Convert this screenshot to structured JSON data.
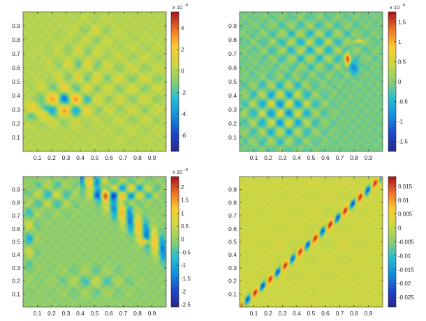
{
  "figure": {
    "layout": "2x2 grid of heatmaps with colorbars",
    "colormap": "parula"
  },
  "chart_data": [
    {
      "type": "heatmap",
      "title": "",
      "xlabel": "",
      "ylabel": "",
      "xlim": [
        0,
        1
      ],
      "ylim": [
        0,
        1
      ],
      "x_ticks": [
        "0.1",
        "0.2",
        "0.3",
        "0.4",
        "0.5",
        "0.6",
        "0.7",
        "0.8",
        "0.9"
      ],
      "y_ticks": [
        "0.1",
        "0.2",
        "0.3",
        "0.4",
        "0.5",
        "0.6",
        "0.7",
        "0.8",
        "0.9"
      ],
      "colorbar": {
        "min": -7.5,
        "max": 5.5,
        "exponent_label": "x 10",
        "exponent_value": "-8",
        "ticks": [
          {
            "label": "4",
            "value": 4
          },
          {
            "label": "2",
            "value": 2
          },
          {
            "label": "0",
            "value": 0
          },
          {
            "label": "-2",
            "value": -2
          },
          {
            "label": "-4",
            "value": -4
          },
          {
            "label": "-6",
            "value": -6
          }
        ]
      },
      "field": {
        "background": 0.02,
        "features": [
          {
            "kind": "ripple",
            "cx": 0.3,
            "cy": 0.35,
            "sx": 0.2,
            "sy": 0.12,
            "amp": 0.7,
            "fx": 38,
            "fy": 33
          },
          {
            "kind": "ripple",
            "cx": 0.1,
            "cy": 0.3,
            "sx": 0.1,
            "sy": 0.08,
            "amp": 0.5,
            "fx": 30,
            "fy": 40
          },
          {
            "kind": "ripple",
            "cx": 0.4,
            "cy": 0.6,
            "sx": 0.2,
            "sy": 0.2,
            "amp": 0.25,
            "fx": 45,
            "fy": 30
          },
          {
            "kind": "ripple",
            "cx": 0.8,
            "cy": 0.45,
            "sx": 0.3,
            "sy": 0.3,
            "amp": 0.18,
            "fx": 35,
            "fy": 42
          },
          {
            "kind": "ripple",
            "cx": 0.5,
            "cy": 0.85,
            "sx": 0.15,
            "sy": 0.1,
            "amp": 0.2,
            "fx": 40,
            "fy": 36
          }
        ]
      }
    },
    {
      "type": "heatmap",
      "title": "",
      "xlabel": "",
      "ylabel": "",
      "xlim": [
        0,
        1
      ],
      "ylim": [
        0,
        1
      ],
      "x_ticks": [
        "0.1",
        "0.2",
        "0.3",
        "0.4",
        "0.5",
        "0.6",
        "0.7",
        "0.8",
        "0.9"
      ],
      "y_ticks": [
        "0.1",
        "0.2",
        "0.3",
        "0.4",
        "0.5",
        "0.6",
        "0.7",
        "0.8",
        "0.9"
      ],
      "colorbar": {
        "min": -1.75,
        "max": 1.75,
        "exponent_label": "x 10",
        "exponent_value": "-8",
        "ticks": [
          {
            "label": "1.5",
            "value": 1.5
          },
          {
            "label": "1",
            "value": 1
          },
          {
            "label": "0.5",
            "value": 0.5
          },
          {
            "label": "0",
            "value": 0
          },
          {
            "label": "-0.5",
            "value": -0.5
          },
          {
            "label": "-1",
            "value": -1
          },
          {
            "label": "-1.5",
            "value": -1.5
          }
        ]
      },
      "field": {
        "background": -0.05,
        "features": [
          {
            "kind": "ripple",
            "cx": 0.3,
            "cy": 0.3,
            "sx": 0.25,
            "sy": 0.25,
            "amp": 0.45,
            "fx": 50,
            "fy": 46
          },
          {
            "kind": "ripple",
            "cx": 0.5,
            "cy": 0.75,
            "sx": 0.35,
            "sy": 0.2,
            "amp": 0.3,
            "fx": 48,
            "fy": 52
          },
          {
            "kind": "blob",
            "cx": 0.755,
            "cy": 0.66,
            "sx": 0.015,
            "sy": 0.05,
            "amp": 0.85
          },
          {
            "kind": "blob",
            "cx": 0.83,
            "cy": 0.79,
            "sx": 0.03,
            "sy": 0.012,
            "amp": 0.7
          },
          {
            "kind": "blob",
            "cx": 0.8,
            "cy": 0.6,
            "sx": 0.03,
            "sy": 0.04,
            "amp": -0.5
          }
        ]
      }
    },
    {
      "type": "heatmap",
      "title": "",
      "xlabel": "",
      "ylabel": "",
      "xlim": [
        0,
        1
      ],
      "ylim": [
        0,
        1
      ],
      "x_ticks": [
        "0.1",
        "0.2",
        "0.3",
        "0.4",
        "0.5",
        "0.6",
        "0.7",
        "0.8",
        "0.9"
      ],
      "y_ticks": [
        "0.1",
        "0.2",
        "0.3",
        "0.4",
        "0.5",
        "0.6",
        "0.7",
        "0.8",
        "0.9"
      ],
      "colorbar": {
        "min": -2.6,
        "max": 2.4,
        "exponent_label": "x 10",
        "exponent_value": "-8",
        "ticks": [
          {
            "label": "2",
            "value": 2
          },
          {
            "label": "1.5",
            "value": 1.5
          },
          {
            "label": "1",
            "value": 1
          },
          {
            "label": "0.5",
            "value": 0.5
          },
          {
            "label": "0",
            "value": 0
          },
          {
            "label": "-0.5",
            "value": -0.5
          },
          {
            "label": "-1",
            "value": -1
          },
          {
            "label": "-1.5",
            "value": -1.5
          },
          {
            "label": "-2",
            "value": -2
          },
          {
            "label": "-2.5",
            "value": -2.5
          }
        ]
      },
      "field": {
        "background": -0.02,
        "features": [
          {
            "kind": "diagband",
            "slope": -1,
            "offset": 1.42,
            "width": 0.07,
            "amp": 0.55,
            "freq": 55,
            "t0": 0.45,
            "t1": 0.95
          },
          {
            "kind": "ripple",
            "cx": 0.7,
            "cy": 0.88,
            "sx": 0.22,
            "sy": 0.08,
            "amp": 0.55,
            "fx": 52,
            "fy": 48
          },
          {
            "kind": "ripple",
            "cx": 0.2,
            "cy": 0.85,
            "sx": 0.18,
            "sy": 0.12,
            "amp": 0.3,
            "fx": 46,
            "fy": 40
          },
          {
            "kind": "ripple",
            "cx": 0.05,
            "cy": 0.55,
            "sx": 0.05,
            "sy": 0.25,
            "amp": 0.35,
            "fx": 40,
            "fy": 30
          },
          {
            "kind": "ripple",
            "cx": 0.5,
            "cy": 0.2,
            "sx": 0.25,
            "sy": 0.12,
            "amp": 0.22,
            "fx": 40,
            "fy": 32
          },
          {
            "kind": "blob",
            "cx": 0.85,
            "cy": 0.5,
            "sx": 0.03,
            "sy": 0.02,
            "amp": 0.8
          }
        ]
      }
    },
    {
      "type": "heatmap",
      "title": "",
      "xlabel": "",
      "ylabel": "",
      "xlim": [
        0,
        1
      ],
      "ylim": [
        0,
        1
      ],
      "x_ticks": [
        "0.1",
        "0.2",
        "0.3",
        "0.4",
        "0.5",
        "0.6",
        "0.7",
        "0.8",
        "0.9"
      ],
      "y_ticks": [
        "0.1",
        "0.2",
        "0.3",
        "0.4",
        "0.5",
        "0.6",
        "0.7",
        "0.8",
        "0.9"
      ],
      "colorbar": {
        "min": -0.0285,
        "max": 0.0185,
        "exponent_label": "",
        "exponent_value": "",
        "ticks": [
          {
            "label": "0.015",
            "value": 0.015
          },
          {
            "label": "0.01",
            "value": 0.01
          },
          {
            "label": "0.005",
            "value": 0.005
          },
          {
            "label": "0",
            "value": 0
          },
          {
            "label": "-0.005",
            "value": -0.005
          },
          {
            "label": "-0.01",
            "value": -0.01
          },
          {
            "label": "-0.015",
            "value": -0.015
          },
          {
            "label": "-0.02",
            "value": -0.02
          },
          {
            "label": "-0.025",
            "value": -0.025
          }
        ]
      },
      "field": {
        "background": 0.06,
        "features": [
          {
            "kind": "diagband",
            "slope": 1,
            "offset": 0.0,
            "width": 0.022,
            "amp": 0.85,
            "freq": 60,
            "t0": 0.06,
            "t1": 0.94
          },
          {
            "kind": "ripple",
            "cx": 0.5,
            "cy": 0.5,
            "sx": 0.45,
            "sy": 0.45,
            "amp": 0.06,
            "fx": 28,
            "fy": 26
          }
        ]
      }
    }
  ]
}
